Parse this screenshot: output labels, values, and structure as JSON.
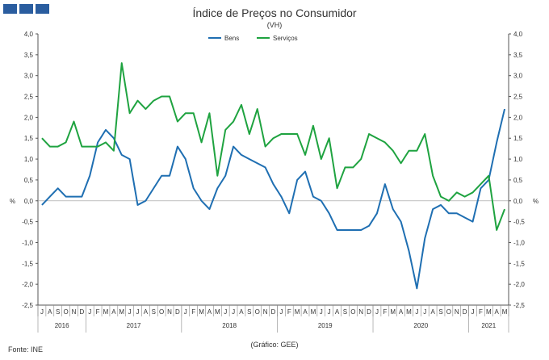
{
  "header": {
    "logo_icon": "ine-logo-icon",
    "title": "Índice de Preços no Consumidor",
    "subtitle": "(VH)"
  },
  "footer": {
    "source": "Fonte: INE",
    "note": "(Gráfico: GEE)"
  },
  "chart_data": {
    "type": "line",
    "title": "Índice de Preços no Consumidor",
    "subtitle": "(VH)",
    "y_left_label": "%",
    "y_right_label": "%",
    "ylim": [
      -2.5,
      4.0
    ],
    "yticks": [
      "4,0",
      "3,5",
      "3,0",
      "2,5",
      "2,0",
      "1,5",
      "1,0",
      "0,5",
      "0,0",
      "-0,5",
      "-1,0",
      "-1,5",
      "-2,0",
      "-2,5"
    ],
    "legend_position": "top-center",
    "grid": false,
    "month_labels": [
      "J",
      "A",
      "S",
      "O",
      "N",
      "D",
      "J",
      "F",
      "M",
      "A",
      "M",
      "J",
      "J",
      "A",
      "S",
      "O",
      "N",
      "D",
      "J",
      "F",
      "M",
      "A",
      "M",
      "J",
      "J",
      "A",
      "S",
      "O",
      "N",
      "D",
      "J",
      "F",
      "M",
      "A",
      "M",
      "J",
      "J",
      "A",
      "S",
      "O",
      "N",
      "D",
      "J",
      "F",
      "M",
      "A",
      "M",
      "J",
      "J",
      "A",
      "S",
      "O",
      "N",
      "D",
      "J",
      "F",
      "M",
      "A",
      "M"
    ],
    "year_labels": [
      "2016",
      "2017",
      "2018",
      "2019",
      "2020",
      "2021"
    ],
    "year_spans": [
      [
        0,
        5
      ],
      [
        6,
        17
      ],
      [
        18,
        29
      ],
      [
        30,
        41
      ],
      [
        42,
        53
      ],
      [
        54,
        58
      ]
    ],
    "series": [
      {
        "name": "Bens",
        "color": "#1f6fb2",
        "values": [
          -0.1,
          0.1,
          0.3,
          0.1,
          0.1,
          0.1,
          0.6,
          1.4,
          1.7,
          1.5,
          1.1,
          1.0,
          -0.1,
          0.0,
          0.3,
          0.6,
          0.6,
          1.3,
          1.0,
          0.3,
          0.0,
          -0.2,
          0.3,
          0.6,
          1.3,
          1.1,
          1.0,
          0.9,
          0.8,
          0.4,
          0.1,
          -0.3,
          0.5,
          0.7,
          0.1,
          0.0,
          -0.3,
          -0.7,
          -0.7,
          -0.7,
          -0.7,
          -0.6,
          -0.3,
          0.4,
          -0.2,
          -0.5,
          -1.2,
          -2.1,
          -0.9,
          -0.2,
          -0.1,
          -0.3,
          -0.3,
          -0.4,
          -0.5,
          0.3,
          0.5,
          1.4,
          2.2
        ]
      },
      {
        "name": "Serviços",
        "color": "#1fa340",
        "values": [
          1.5,
          1.3,
          1.3,
          1.4,
          1.9,
          1.3,
          1.3,
          1.3,
          1.4,
          1.2,
          3.3,
          2.1,
          2.4,
          2.2,
          2.4,
          2.5,
          2.5,
          1.9,
          2.1,
          2.1,
          1.4,
          2.1,
          0.6,
          1.7,
          1.9,
          2.3,
          1.6,
          2.2,
          1.3,
          1.5,
          1.6,
          1.6,
          1.6,
          1.1,
          1.8,
          1.0,
          1.5,
          0.3,
          0.8,
          0.8,
          1.0,
          1.6,
          1.5,
          1.4,
          1.2,
          0.9,
          1.2,
          1.2,
          1.6,
          0.6,
          0.1,
          0.0,
          0.2,
          0.1,
          0.2,
          0.4,
          0.6,
          -0.7,
          -0.2
        ]
      }
    ]
  }
}
